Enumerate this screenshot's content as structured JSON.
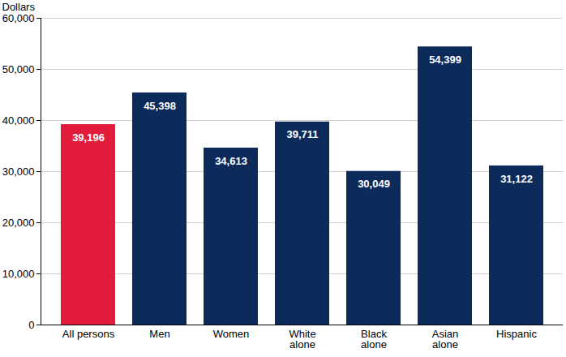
{
  "chart_data": {
    "type": "bar",
    "y_label": "Dollars",
    "categories": [
      "All persons",
      "Men",
      "Women",
      "White\nalone",
      "Black\nalone",
      "Asian\nalone",
      "Hispanic"
    ],
    "values": [
      39196,
      45398,
      34613,
      39711,
      30049,
      54399,
      31122
    ],
    "value_labels": [
      "39,196",
      "45,398",
      "34,613",
      "39,711",
      "30,049",
      "54,399",
      "31,122"
    ],
    "colors": [
      "#e31b3b",
      "#0c2b5b",
      "#0c2b5b",
      "#0c2b5b",
      "#0c2b5b",
      "#0c2b5b",
      "#0c2b5b"
    ],
    "ylim": [
      0,
      60000
    ],
    "yticks": [
      0,
      {
        "value": 10000,
        "label": "10,000"
      },
      {
        "value": 20000,
        "label": "20,000"
      },
      {
        "value": 30000,
        "label": "30,000"
      },
      {
        "value": 40000,
        "label": "40,000"
      },
      {
        "value": 50000,
        "label": "50,000"
      },
      {
        "value": 60000,
        "label": "60,000"
      }
    ],
    "grid": true,
    "data_labels": true
  }
}
